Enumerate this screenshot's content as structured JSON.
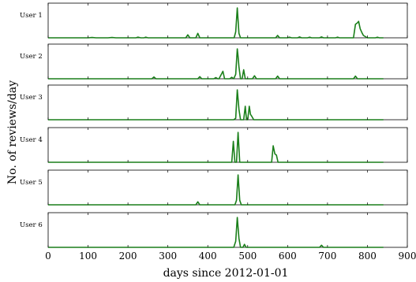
{
  "chart_data": {
    "type": "line",
    "xlabel": "days since 2012-01-01",
    "ylabel": "No. of reviews/day",
    "xlim": [
      0,
      900
    ],
    "xticks": [
      0,
      100,
      200,
      300,
      400,
      500,
      600,
      700,
      800,
      900
    ],
    "ylim": [
      0,
      1
    ],
    "grid": false,
    "line_color": "#1a7f1a",
    "series": [
      {
        "name": "User 1",
        "points": [
          [
            0,
            0
          ],
          [
            100,
            0
          ],
          [
            110,
            0.01
          ],
          [
            120,
            0
          ],
          [
            150,
            0
          ],
          [
            160,
            0.01
          ],
          [
            170,
            0
          ],
          [
            220,
            0
          ],
          [
            225,
            0.02
          ],
          [
            232,
            0
          ],
          [
            240,
            0
          ],
          [
            245,
            0.02
          ],
          [
            250,
            0
          ],
          [
            345,
            0
          ],
          [
            350,
            0.1
          ],
          [
            355,
            0
          ],
          [
            370,
            0
          ],
          [
            375,
            0.15
          ],
          [
            380,
            0
          ],
          [
            466,
            0
          ],
          [
            470,
            0.2
          ],
          [
            474,
            1.0
          ],
          [
            478,
            0.15
          ],
          [
            482,
            0
          ],
          [
            570,
            0
          ],
          [
            575,
            0.08
          ],
          [
            580,
            0
          ],
          [
            600,
            0
          ],
          [
            605,
            0.02
          ],
          [
            610,
            0
          ],
          [
            625,
            0
          ],
          [
            630,
            0.03
          ],
          [
            635,
            0
          ],
          [
            650,
            0
          ],
          [
            655,
            0.02
          ],
          [
            660,
            0
          ],
          [
            680,
            0
          ],
          [
            685,
            0.03
          ],
          [
            690,
            0
          ],
          [
            700,
            0
          ],
          [
            720,
            0
          ],
          [
            725,
            0.02
          ],
          [
            730,
            0
          ],
          [
            765,
            0
          ],
          [
            770,
            0.45
          ],
          [
            775,
            0.5
          ],
          [
            778,
            0.55
          ],
          [
            782,
            0.3
          ],
          [
            787,
            0.15
          ],
          [
            790,
            0.08
          ],
          [
            795,
            0.04
          ],
          [
            800,
            0
          ],
          [
            820,
            0
          ],
          [
            825,
            0.02
          ],
          [
            830,
            0
          ],
          [
            840,
            0
          ]
        ]
      },
      {
        "name": "User 2",
        "points": [
          [
            0,
            0
          ],
          [
            260,
            0
          ],
          [
            265,
            0.06
          ],
          [
            270,
            0
          ],
          [
            375,
            0
          ],
          [
            380,
            0.07
          ],
          [
            385,
            0
          ],
          [
            415,
            0
          ],
          [
            420,
            0.04
          ],
          [
            425,
            0
          ],
          [
            428,
            0
          ],
          [
            432,
            0.1
          ],
          [
            438,
            0.25
          ],
          [
            442,
            0
          ],
          [
            455,
            0
          ],
          [
            460,
            0.05
          ],
          [
            465,
            0
          ],
          [
            470,
            0.15
          ],
          [
            474,
            1.0
          ],
          [
            476,
            0.75
          ],
          [
            478,
            0.4
          ],
          [
            482,
            0
          ],
          [
            486,
            0
          ],
          [
            490,
            0.3
          ],
          [
            494,
            0
          ],
          [
            512,
            0
          ],
          [
            517,
            0.1
          ],
          [
            522,
            0
          ],
          [
            570,
            0
          ],
          [
            575,
            0.09
          ],
          [
            580,
            0
          ],
          [
            765,
            0
          ],
          [
            770,
            0.09
          ],
          [
            775,
            0
          ],
          [
            840,
            0
          ]
        ]
      },
      {
        "name": "User 3",
        "points": [
          [
            0,
            0
          ],
          [
            465,
            0
          ],
          [
            470,
            0.05
          ],
          [
            474,
            1.0
          ],
          [
            478,
            0.35
          ],
          [
            482,
            0
          ],
          [
            490,
            0
          ],
          [
            494,
            0.45
          ],
          [
            497,
            0
          ],
          [
            500,
            0
          ],
          [
            504,
            0.45
          ],
          [
            507,
            0.18
          ],
          [
            511,
            0.1
          ],
          [
            515,
            0
          ],
          [
            840,
            0
          ]
        ]
      },
      {
        "name": "User 4",
        "points": [
          [
            0,
            0
          ],
          [
            460,
            0
          ],
          [
            464,
            0.7
          ],
          [
            468,
            0
          ],
          [
            472,
            0
          ],
          [
            476,
            1.0
          ],
          [
            480,
            0
          ],
          [
            560,
            0
          ],
          [
            564,
            0.55
          ],
          [
            568,
            0.28
          ],
          [
            572,
            0.24
          ],
          [
            576,
            0
          ],
          [
            840,
            0
          ]
        ]
      },
      {
        "name": "User 5",
        "points": [
          [
            0,
            0
          ],
          [
            370,
            0
          ],
          [
            375,
            0.1
          ],
          [
            380,
            0
          ],
          [
            468,
            0
          ],
          [
            472,
            0.15
          ],
          [
            476,
            1.0
          ],
          [
            480,
            0.15
          ],
          [
            484,
            0
          ],
          [
            840,
            0
          ]
        ]
      },
      {
        "name": "User 6",
        "points": [
          [
            0,
            0
          ],
          [
            465,
            0
          ],
          [
            470,
            0.2
          ],
          [
            474,
            1.0
          ],
          [
            478,
            0.3
          ],
          [
            482,
            0
          ],
          [
            488,
            0
          ],
          [
            492,
            0.1
          ],
          [
            496,
            0
          ],
          [
            680,
            0
          ],
          [
            685,
            0.07
          ],
          [
            690,
            0
          ],
          [
            840,
            0
          ]
        ]
      }
    ]
  }
}
